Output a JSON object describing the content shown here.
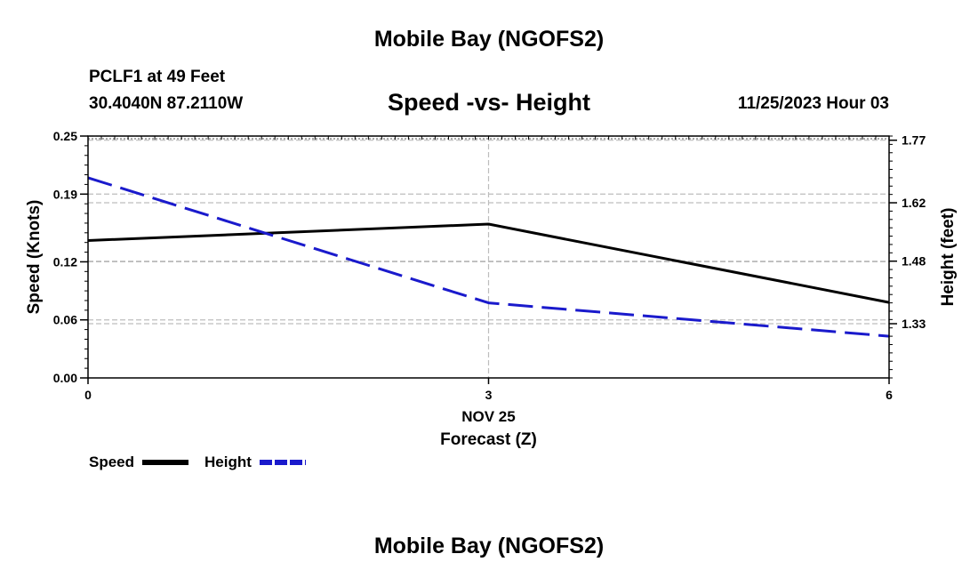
{
  "page": {
    "title_top": "Mobile Bay (NGOFS2)",
    "title_bottom": "Mobile Bay (NGOFS2)",
    "station_name": "PCLF1 at 49 Feet",
    "station_coords": "30.4040N  87.2110W",
    "timestamp": "11/25/2023 Hour 03"
  },
  "chart_data": {
    "type": "line",
    "title": "Speed -vs- Height",
    "x": [
      0,
      3,
      6
    ],
    "x_ticks": [
      0,
      3,
      6
    ],
    "x_tick_labels": [
      "0",
      "3",
      "6"
    ],
    "x_date_label": "NOV 25",
    "xlabel": "Forecast (Z)",
    "xlim": [
      0,
      6
    ],
    "ylabel_left": "Speed (Knots)",
    "ylim_left": [
      0,
      0.25
    ],
    "yticks_left": [
      0.0,
      0.06,
      0.12,
      0.19,
      0.25
    ],
    "ytick_labels_left": [
      "0.00",
      "0.06",
      "0.12",
      "0.19",
      "0.25"
    ],
    "ylabel_right": "Height (feet)",
    "ylim_right": [
      1.2,
      1.78
    ],
    "yticks_right": [
      1.33,
      1.48,
      1.62,
      1.77
    ],
    "ytick_labels_right": [
      "1.33",
      "1.48",
      "1.62",
      "1.77"
    ],
    "series": [
      {
        "name": "Speed",
        "axis": "left",
        "color": "#000000",
        "dash": "solid",
        "values": [
          0.142,
          0.159,
          0.078
        ]
      },
      {
        "name": "Height",
        "axis": "right",
        "color": "#1a1acc",
        "dash": "dashed",
        "values": [
          1.68,
          1.38,
          1.3
        ]
      }
    ],
    "grid": true,
    "legend": "bottom-left"
  }
}
